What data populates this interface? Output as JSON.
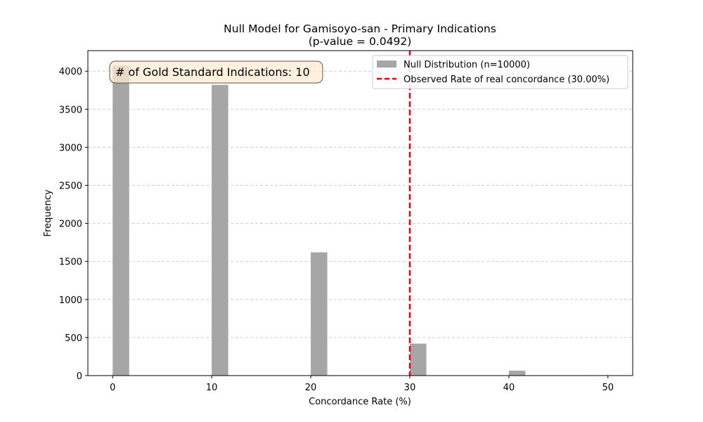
{
  "chart_data": {
    "type": "bar",
    "title": "Null Model for Gamisoyo-san - Primary Indications",
    "subtitle": "(p-value = 0.0492)",
    "xlabel": "Concordance Rate (%)",
    "ylabel": "Frequency",
    "xlim": [
      -2.5,
      52.5
    ],
    "ylim": [
      0,
      4270
    ],
    "xticks": [
      0,
      10,
      20,
      30,
      40,
      50
    ],
    "yticks": [
      0,
      500,
      1000,
      1500,
      2000,
      2500,
      3000,
      3500,
      4000
    ],
    "bin_width": 1.67,
    "series": [
      {
        "name": "Null Distribution (n=10000)",
        "color": "#a6a6a6",
        "bins": [
          {
            "x": 0,
            "count": 4070
          },
          {
            "x": 10,
            "count": 3820
          },
          {
            "x": 20,
            "count": 1620
          },
          {
            "x": 30,
            "count": 420
          },
          {
            "x": 40,
            "count": 65
          },
          {
            "x": 48.33,
            "count": 5
          }
        ]
      }
    ],
    "reference_line": {
      "label": "Observed Rate of real concordance (30.00%)",
      "x": 30,
      "color": "#e8000b",
      "style": "dashed"
    },
    "annotation": {
      "text": "# of Gold Standard Indications: 10",
      "background": "#fcebd2",
      "position": "top-left"
    },
    "grid": {
      "y": true,
      "x": false
    },
    "legend_position": "top-right"
  }
}
